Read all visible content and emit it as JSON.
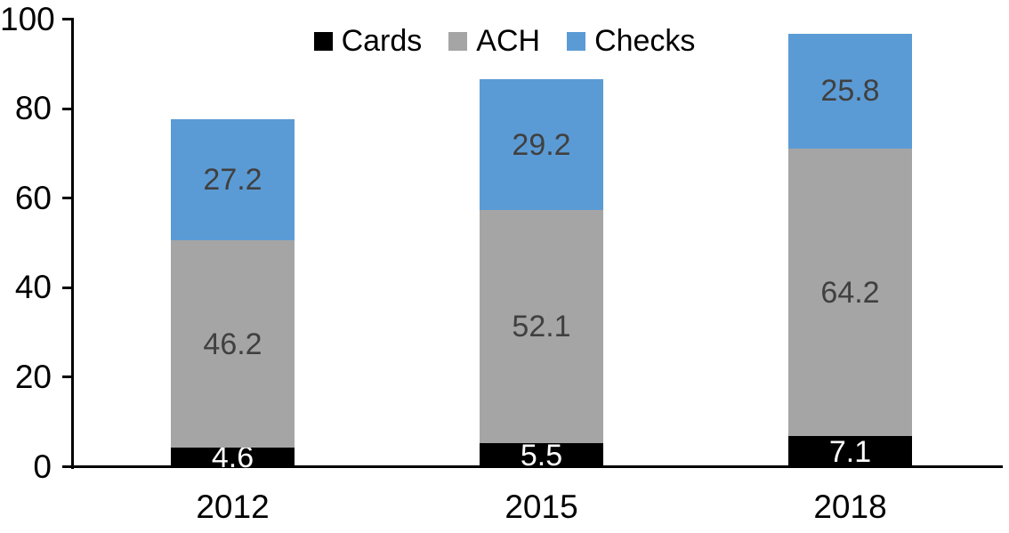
{
  "chart_data": {
    "type": "bar",
    "stacked": true,
    "title": "",
    "xlabel": "",
    "ylabel": "",
    "categories": [
      "2012",
      "2015",
      "2018"
    ],
    "series": [
      {
        "name": "Cards",
        "color": "#000000",
        "label_color": "#ffffff",
        "values": [
          4.6,
          5.5,
          7.1
        ]
      },
      {
        "name": "ACH",
        "color": "#a5a5a5",
        "label_color": "#404040",
        "values": [
          46.2,
          52.1,
          64.2
        ]
      },
      {
        "name": "Checks",
        "color": "#5b9bd5",
        "label_color": "#404040",
        "values": [
          27.2,
          29.2,
          25.8
        ]
      }
    ],
    "ylim": [
      0,
      100
    ],
    "yticks": [
      0,
      20,
      40,
      60,
      80,
      100
    ],
    "grid": false,
    "legend_position": "top",
    "axis_color": "#000000",
    "background_color": "#ffffff"
  }
}
